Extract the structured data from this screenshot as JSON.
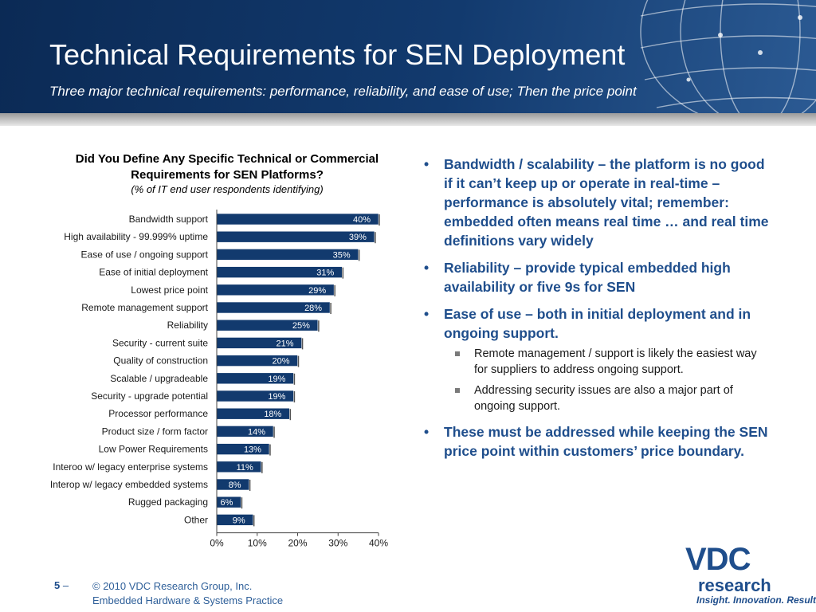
{
  "header": {
    "title": "Technical Requirements for SEN Deployment",
    "subtitle": "Three major technical requirements: performance, reliability, and ease of use; Then the price point"
  },
  "chart_data": {
    "type": "bar",
    "orientation": "horizontal",
    "title": "Did You Define Any Specific Technical or Commercial Requirements for SEN Platforms?",
    "subtitle": "(% of IT end user respondents identifying)",
    "categories": [
      "Bandwidth support",
      "High availability - 99.999% uptime",
      "Ease of use / ongoing support",
      "Ease of initial deployment",
      "Lowest price point",
      "Remote management support",
      "Reliability",
      "Security - current suite",
      "Quality of construction",
      "Scalable / upgradeable",
      "Security - upgrade potential",
      "Processor performance",
      "Product size / form factor",
      "Low Power Requirements",
      "Interoo w/ legacy enterprise systems",
      "Interop w/ legacy embedded systems",
      "Rugged packaging",
      "Other"
    ],
    "values": [
      40,
      39,
      35,
      31,
      29,
      28,
      25,
      21,
      20,
      19,
      19,
      18,
      14,
      13,
      11,
      8,
      6,
      9
    ],
    "data_labels": [
      "40%",
      "39%",
      "35%",
      "31%",
      "29%",
      "28%",
      "25%",
      "21%",
      "20%",
      "19%",
      "19%",
      "18%",
      "14%",
      "13%",
      "11%",
      "8%",
      "6%",
      "9%"
    ],
    "xlim": [
      0,
      40
    ],
    "x_ticks": [
      "0%",
      "10%",
      "20%",
      "30%",
      "40%"
    ],
    "grid": false,
    "bar_color": "#123a6e"
  },
  "bullets": [
    {
      "text": "Bandwidth / scalability – the platform is no good if it can’t keep up or operate in real-time – performance is absolutely vital; remember:  embedded often means real time … and real time definitions vary widely"
    },
    {
      "text": "Reliability – provide typical embedded high availability or five 9s for SEN"
    },
    {
      "text": "Ease of use – both in initial deployment and in ongoing support.",
      "sub": [
        "Remote management / support is likely the easiest way for suppliers to address ongoing support.",
        "Addressing security issues are also a major part of ongoing support."
      ]
    },
    {
      "text": "These must be addressed while keeping the SEN price point within customers’ price boundary."
    }
  ],
  "footer": {
    "page_number": "5",
    "page_dash": "–",
    "copyright": "© 2010 VDC Research Group, Inc.",
    "practice": "Embedded Hardware & Systems Practice"
  },
  "logo": {
    "brand": "VDC",
    "word": "research",
    "tagline": "Insight. Innovation. Results."
  },
  "colors": {
    "header_bg": "#0b2a55",
    "bullet_text": "#1f4e8c",
    "bar_fill": "#123a6e"
  }
}
